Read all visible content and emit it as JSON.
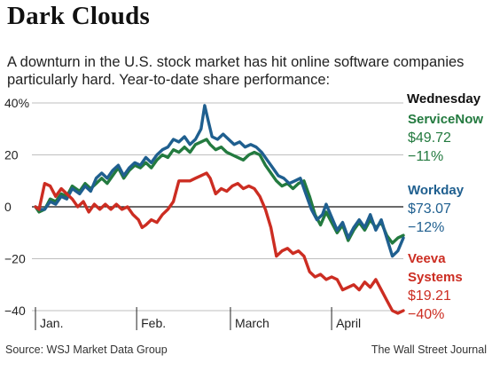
{
  "title": "Dark Clouds",
  "subtitle": "A downturn in the U.S. stock market has hit online software companies particularly hard. Year-to-date share performance:",
  "legend_heading": "Wednesday",
  "source": "Source: WSJ Market Data Group",
  "credit": "The Wall Street Journal",
  "chart_data": {
    "type": "line",
    "ylim": [
      -40,
      40
    ],
    "yticks": [
      40,
      20,
      0,
      -20,
      -40
    ],
    "ytick_labels": [
      "40%",
      "20",
      "0",
      "−20",
      "−40"
    ],
    "xlim": [
      0,
      100
    ],
    "x_labels": [
      {
        "x": 0,
        "label": "Jan."
      },
      {
        "x": 27.5,
        "label": "Feb."
      },
      {
        "x": 53,
        "label": "March"
      },
      {
        "x": 80.5,
        "label": "April"
      }
    ],
    "series": [
      {
        "name": "ServiceNow",
        "value": "$49.72",
        "change": "−11%",
        "color": "#237a3f",
        "points": [
          [
            0,
            0
          ],
          [
            1,
            -2
          ],
          [
            2.5,
            -1
          ],
          [
            4,
            3
          ],
          [
            5.5,
            2
          ],
          [
            7,
            5
          ],
          [
            8.5,
            4
          ],
          [
            10,
            8
          ],
          [
            12,
            6
          ],
          [
            13.5,
            9
          ],
          [
            15,
            7
          ],
          [
            16.5,
            9
          ],
          [
            18,
            11
          ],
          [
            19.5,
            9
          ],
          [
            21,
            12
          ],
          [
            22.5,
            15
          ],
          [
            24,
            11
          ],
          [
            25.5,
            14
          ],
          [
            27,
            16
          ],
          [
            28.5,
            15
          ],
          [
            30,
            17
          ],
          [
            31.5,
            15
          ],
          [
            33,
            18
          ],
          [
            34.5,
            20
          ],
          [
            36,
            19
          ],
          [
            37.5,
            22
          ],
          [
            39,
            21
          ],
          [
            40.5,
            23
          ],
          [
            42,
            21
          ],
          [
            43.5,
            24
          ],
          [
            45,
            25
          ],
          [
            46.5,
            26
          ],
          [
            47.5,
            24
          ],
          [
            49,
            22
          ],
          [
            50.5,
            23
          ],
          [
            52,
            21
          ],
          [
            53.5,
            20
          ],
          [
            55,
            19
          ],
          [
            56.5,
            18
          ],
          [
            58,
            20
          ],
          [
            59.5,
            21
          ],
          [
            61,
            20
          ],
          [
            62.5,
            16
          ],
          [
            64,
            13
          ],
          [
            65.5,
            10
          ],
          [
            67,
            8
          ],
          [
            68.5,
            9
          ],
          [
            70,
            7
          ],
          [
            71.5,
            9
          ],
          [
            73,
            10
          ],
          [
            74.5,
            4
          ],
          [
            76,
            -3
          ],
          [
            77.5,
            -7
          ],
          [
            79,
            -2
          ],
          [
            80.5,
            -6
          ],
          [
            82,
            -10
          ],
          [
            83.5,
            -7
          ],
          [
            85,
            -13
          ],
          [
            86.5,
            -9
          ],
          [
            88,
            -6
          ],
          [
            89.5,
            -9
          ],
          [
            91,
            -5
          ],
          [
            92.5,
            -8
          ],
          [
            94,
            -6
          ],
          [
            95.5,
            -11
          ],
          [
            97,
            -14
          ],
          [
            98.5,
            -12
          ],
          [
            100,
            -11
          ]
        ]
      },
      {
        "name": "Workday",
        "value": "$73.07",
        "change": "−12%",
        "color": "#1f5f8f",
        "points": [
          [
            0,
            0
          ],
          [
            1,
            -1
          ],
          [
            2.5,
            -1
          ],
          [
            4,
            2
          ],
          [
            5.5,
            1
          ],
          [
            7,
            4
          ],
          [
            8.5,
            3
          ],
          [
            10,
            7
          ],
          [
            12,
            5
          ],
          [
            13.5,
            8
          ],
          [
            15,
            6
          ],
          [
            16.5,
            11
          ],
          [
            18,
            13
          ],
          [
            19.5,
            11
          ],
          [
            21,
            14
          ],
          [
            22.5,
            16
          ],
          [
            24,
            12
          ],
          [
            25.5,
            15
          ],
          [
            27,
            17
          ],
          [
            28.5,
            16
          ],
          [
            30,
            19
          ],
          [
            31.5,
            17
          ],
          [
            33,
            20
          ],
          [
            34.5,
            22
          ],
          [
            36,
            23
          ],
          [
            37.5,
            26
          ],
          [
            39,
            25
          ],
          [
            40.5,
            27
          ],
          [
            42,
            24
          ],
          [
            43.5,
            26
          ],
          [
            45,
            30
          ],
          [
            46,
            39
          ],
          [
            47,
            33
          ],
          [
            48,
            27
          ],
          [
            49.5,
            26
          ],
          [
            51,
            28
          ],
          [
            52.5,
            26
          ],
          [
            54,
            24
          ],
          [
            55.5,
            25
          ],
          [
            57,
            23
          ],
          [
            58.5,
            24
          ],
          [
            60,
            23
          ],
          [
            61.5,
            21
          ],
          [
            63,
            18
          ],
          [
            64.5,
            15
          ],
          [
            66,
            12
          ],
          [
            67.5,
            11
          ],
          [
            69,
            9
          ],
          [
            70.5,
            10
          ],
          [
            72,
            11
          ],
          [
            73.5,
            5
          ],
          [
            75,
            -1
          ],
          [
            76.5,
            -5
          ],
          [
            78,
            -3
          ],
          [
            79,
            1
          ],
          [
            80.5,
            -4
          ],
          [
            82,
            -9
          ],
          [
            83.5,
            -6
          ],
          [
            85,
            -12
          ],
          [
            86.5,
            -8
          ],
          [
            88,
            -5
          ],
          [
            89.5,
            -8
          ],
          [
            91,
            -3
          ],
          [
            92.5,
            -9
          ],
          [
            94,
            -5
          ],
          [
            95.5,
            -12
          ],
          [
            97,
            -19
          ],
          [
            98.5,
            -17
          ],
          [
            100,
            -12
          ]
        ]
      },
      {
        "name": "Veeva Systems",
        "value": "$19.21",
        "change": "−40%",
        "color": "#cc2d22",
        "points": [
          [
            0,
            0
          ],
          [
            1,
            -1
          ],
          [
            2.5,
            9
          ],
          [
            4,
            8
          ],
          [
            5.5,
            4
          ],
          [
            7,
            7
          ],
          [
            8.5,
            5
          ],
          [
            10,
            3
          ],
          [
            11.5,
            0
          ],
          [
            13,
            2
          ],
          [
            14.5,
            -2
          ],
          [
            16,
            1
          ],
          [
            17.5,
            -1
          ],
          [
            19,
            1
          ],
          [
            20.5,
            -1
          ],
          [
            22,
            1
          ],
          [
            23.5,
            -1
          ],
          [
            25,
            0
          ],
          [
            26.5,
            -3
          ],
          [
            28,
            -5
          ],
          [
            29,
            -8
          ],
          [
            30,
            -7
          ],
          [
            31.5,
            -5
          ],
          [
            33,
            -6
          ],
          [
            34.5,
            -3
          ],
          [
            36,
            -1
          ],
          [
            37.5,
            2
          ],
          [
            39,
            10
          ],
          [
            40.5,
            10
          ],
          [
            42,
            10
          ],
          [
            43.5,
            11
          ],
          [
            45,
            12
          ],
          [
            46.5,
            13
          ],
          [
            47.5,
            11
          ],
          [
            49,
            5
          ],
          [
            50.5,
            7
          ],
          [
            52,
            6
          ],
          [
            53.5,
            8
          ],
          [
            55,
            9
          ],
          [
            56.5,
            7
          ],
          [
            58,
            8
          ],
          [
            59.5,
            7
          ],
          [
            61,
            4
          ],
          [
            62.5,
            -1
          ],
          [
            64,
            -8
          ],
          [
            65.5,
            -19
          ],
          [
            67,
            -17
          ],
          [
            68.5,
            -16
          ],
          [
            70,
            -18
          ],
          [
            71.5,
            -17
          ],
          [
            73,
            -19
          ],
          [
            74.5,
            -25
          ],
          [
            76,
            -27
          ],
          [
            77.5,
            -26
          ],
          [
            79,
            -28
          ],
          [
            80.5,
            -27
          ],
          [
            82,
            -28
          ],
          [
            83.5,
            -32
          ],
          [
            85,
            -31
          ],
          [
            86.5,
            -30
          ],
          [
            88,
            -32
          ],
          [
            89.5,
            -29
          ],
          [
            91,
            -31
          ],
          [
            92.5,
            -28
          ],
          [
            94,
            -32
          ],
          [
            95.5,
            -36
          ],
          [
            97,
            -40
          ],
          [
            98.5,
            -41
          ],
          [
            100,
            -40
          ]
        ]
      }
    ]
  }
}
